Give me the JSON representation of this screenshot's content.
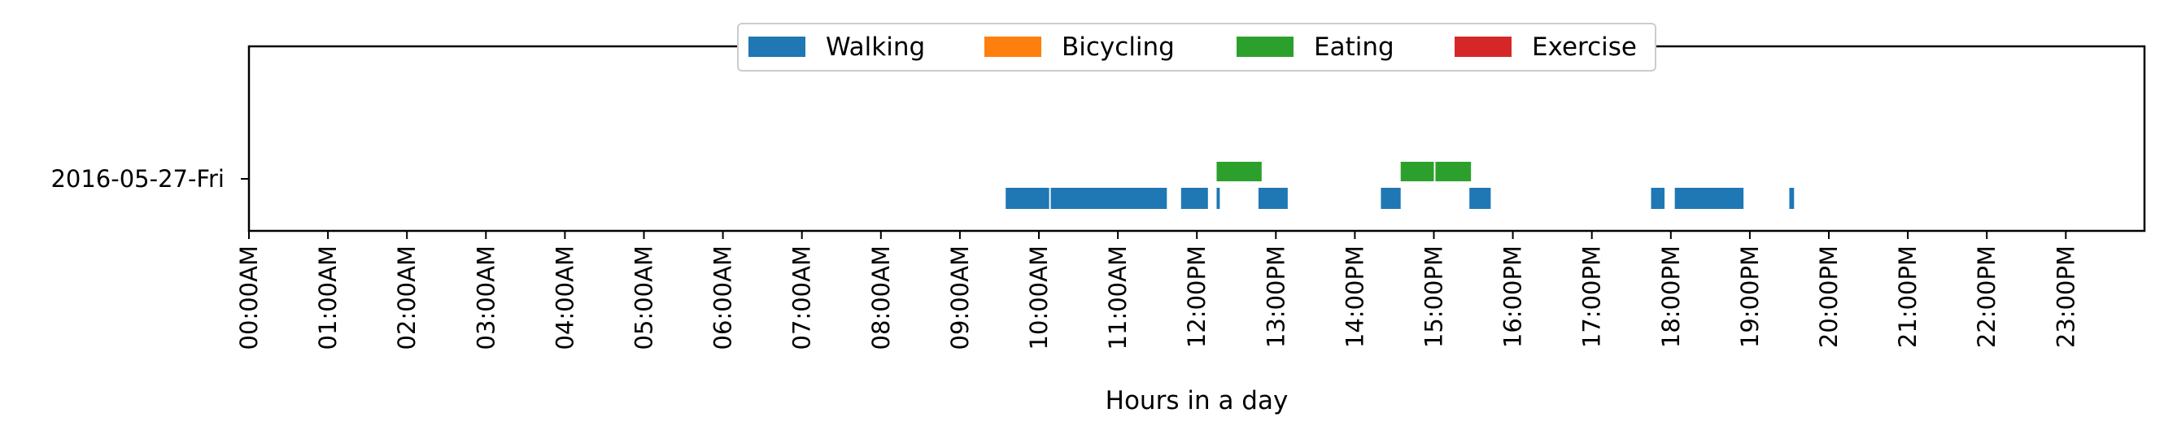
{
  "chart_data": {
    "type": "timeline",
    "xlabel": "Hours in a day",
    "xlim": [
      0,
      24
    ],
    "x_tick_labels": [
      "00:00AM",
      "01:00AM",
      "02:00AM",
      "03:00AM",
      "04:00AM",
      "05:00AM",
      "06:00AM",
      "07:00AM",
      "08:00AM",
      "09:00AM",
      "10:00AM",
      "11:00AM",
      "12:00PM",
      "13:00PM",
      "14:00PM",
      "15:00PM",
      "16:00PM",
      "17:00PM",
      "18:00PM",
      "19:00PM",
      "20:00PM",
      "21:00PM",
      "22:00PM",
      "23:00PM"
    ],
    "y_tick_labels": [
      "2016-05-27-Fri"
    ],
    "legend_position": "top-center",
    "grid": false,
    "series": [
      {
        "name": "Walking",
        "color": "#1f77b4",
        "lane": "lower",
        "intervals": [
          [
            9.58,
            10.13
          ],
          [
            10.15,
            11.62
          ],
          [
            11.8,
            12.14
          ],
          [
            12.25,
            12.29
          ],
          [
            12.78,
            13.15
          ],
          [
            14.33,
            14.58
          ],
          [
            15.45,
            15.72
          ],
          [
            17.75,
            17.92
          ],
          [
            18.05,
            18.92
          ],
          [
            19.5,
            19.56
          ]
        ]
      },
      {
        "name": "Bicycling",
        "color": "#ff7f0e",
        "lane": "middle",
        "intervals": []
      },
      {
        "name": "Eating",
        "color": "#2ca02c",
        "lane": "upper",
        "intervals": [
          [
            12.25,
            12.82
          ],
          [
            14.58,
            15.0
          ],
          [
            15.02,
            15.47
          ]
        ]
      },
      {
        "name": "Exercise",
        "color": "#d62728",
        "lane": "top",
        "intervals": []
      }
    ]
  }
}
